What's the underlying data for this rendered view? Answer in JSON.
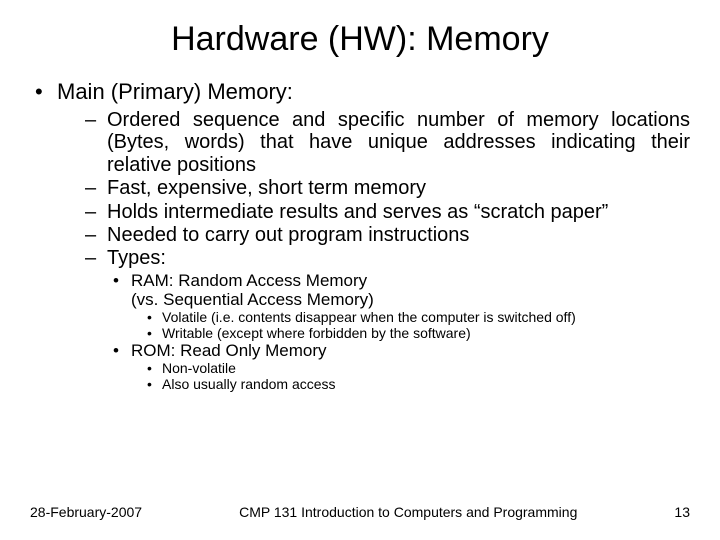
{
  "title": "Hardware (HW): Memory",
  "main_item": "Main (Primary) Memory:",
  "sub_items": [
    "Ordered sequence and specific number of memory locations (Bytes, words) that have unique addresses indicating their relative positions",
    "Fast, expensive, short term memory",
    "Holds intermediate results and serves as “scratch paper”",
    "Needed to carry out program instructions",
    "Types:"
  ],
  "type_items": [
    {
      "label": "RAM: Random Access Memory",
      "extra": "(vs. Sequential Access Memory)",
      "details": [
        "Volatile (i.e. contents disappear when the computer is switched off)",
        "Writable (except where forbidden by the software)"
      ]
    },
    {
      "label": "ROM: Read Only Memory",
      "extra": "",
      "details": [
        "Non-volatile",
        "Also usually random access"
      ]
    }
  ],
  "footer": {
    "date": "28-February-2007",
    "course": "CMP 131 Introduction to Computers and Programming",
    "page": "13"
  }
}
